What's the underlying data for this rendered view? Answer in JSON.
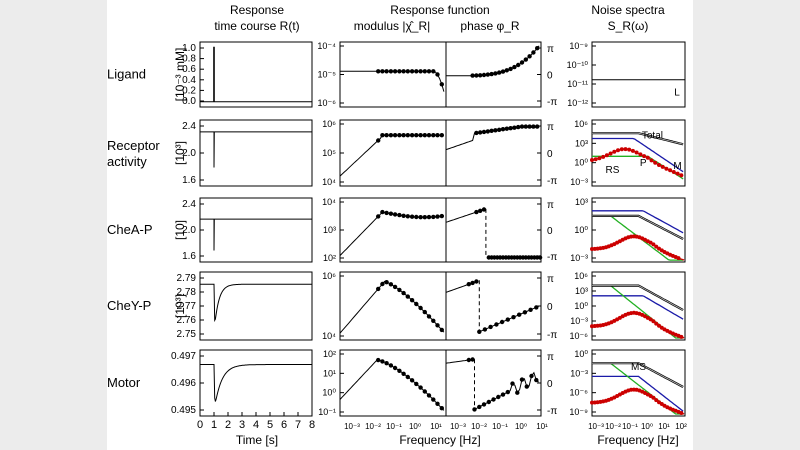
{
  "chart_data": {
    "type": "line",
    "columns": [
      {
        "title_line1": "Response",
        "title_line2": "time course R(t)"
      },
      {
        "title_line1": "Response function",
        "sub_modulus": "modulus |χ̂_R|",
        "sub_phase": "phase φ_R"
      },
      {
        "title_line1": "Noise spectra",
        "title_line2": "S_R(ω)"
      }
    ],
    "rows": [
      {
        "label": [
          "Ligand"
        ],
        "time_unit": "[10⁻³ mM]",
        "time_ticks": [
          "1.0",
          "0.8",
          "0.6",
          "0.4",
          "0.2",
          "0.0"
        ],
        "mod_ticks": [
          "10⁻⁴",
          "10⁻⁵",
          "10⁻⁶"
        ],
        "noise_ticks": [
          "10⁻⁹",
          "10⁻¹⁰",
          "10⁻¹¹",
          "10⁻¹²"
        ],
        "noise_labels": [
          "L"
        ]
      },
      {
        "label": [
          "Receptor",
          "activity"
        ],
        "time_unit": "[10³]",
        "time_ticks": [
          "2.4",
          "2.0",
          "1.6"
        ],
        "mod_ticks": [
          "10⁶",
          "10⁵",
          "10⁴"
        ],
        "noise_ticks": [
          "10⁶",
          "10³",
          "10⁰",
          "10⁻³"
        ],
        "noise_labels": [
          "Total",
          "RS",
          "P",
          "M"
        ]
      },
      {
        "label": [
          "CheA-P"
        ],
        "time_unit": "[10]",
        "time_ticks": [
          "2.4",
          "2.0",
          "1.6"
        ],
        "mod_ticks": [
          "10⁴",
          "10³",
          "10²"
        ],
        "noise_ticks": [
          "10³",
          "10⁰",
          "10⁻³"
        ],
        "noise_labels": []
      },
      {
        "label": [
          "CheY-P"
        ],
        "time_unit": "[10³]",
        "time_ticks": [
          "2.79",
          "2.78",
          "2.77",
          "2.76",
          "2.75"
        ],
        "mod_ticks": [
          "10⁶",
          "10⁴"
        ],
        "noise_ticks": [
          "10⁶",
          "10³",
          "10⁰",
          "10⁻³",
          "10⁻⁶"
        ],
        "noise_labels": []
      },
      {
        "label": [
          "Motor"
        ],
        "time_unit": "",
        "time_ticks": [
          "0.497",
          "0.496",
          "0.495"
        ],
        "mod_ticks": [
          "10²",
          "10¹",
          "10⁰",
          "10⁻¹"
        ],
        "noise_ticks": [
          "10⁰",
          "10⁻³",
          "10⁻⁶",
          "10⁻⁹"
        ],
        "noise_labels": [
          "MS"
        ]
      }
    ],
    "phase_ticks": [
      "π",
      "0",
      "-π"
    ],
    "time_axis": {
      "label": "Time [s]",
      "ticks": [
        "0",
        "1",
        "2",
        "3",
        "4",
        "5",
        "6",
        "7",
        "8"
      ],
      "range": [
        0,
        8
      ]
    },
    "freq_axis": {
      "label": "Frequency [Hz]",
      "ticks_rf": [
        "10⁻³",
        "10⁻²",
        "10⁻¹",
        "10⁰",
        "10¹"
      ],
      "ticks_noise": [
        "10⁻³",
        "10⁻²",
        "10⁻¹",
        "10⁰",
        "10¹",
        "10²"
      ]
    },
    "series_colors": {
      "total": "#000000",
      "RS": "#cc0000",
      "P": "#1a1aa8",
      "M": "#22b022",
      "MS": "#000000",
      "L": "#000000"
    }
  }
}
